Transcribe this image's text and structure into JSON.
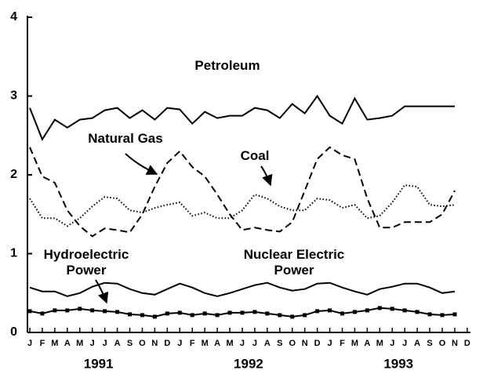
{
  "chart_data": {
    "type": "line",
    "categories": [
      "J",
      "F",
      "M",
      "A",
      "M",
      "J",
      "J",
      "A",
      "S",
      "O",
      "N",
      "D",
      "J",
      "F",
      "M",
      "A",
      "M",
      "J",
      "J",
      "A",
      "S",
      "O",
      "N",
      "D",
      "J",
      "F",
      "M",
      "A",
      "M",
      "J",
      "J",
      "A",
      "S",
      "O",
      "N",
      "D"
    ],
    "groups": [
      "1991",
      "1992",
      "1993"
    ],
    "ylim": [
      0,
      4
    ],
    "yticks": [
      0,
      1,
      2,
      3,
      4
    ],
    "series": [
      {
        "name": "Petroleum",
        "color": "#000000",
        "dash": "none",
        "values": [
          2.85,
          2.45,
          2.7,
          2.6,
          2.7,
          2.72,
          2.82,
          2.85,
          2.72,
          2.82,
          2.7,
          2.85,
          2.83,
          2.65,
          2.8,
          2.72,
          2.75,
          2.75,
          2.85,
          2.82,
          2.72,
          2.9,
          2.78,
          3.0,
          2.75,
          2.65,
          2.97,
          2.7,
          2.72,
          2.75,
          2.87,
          2.87,
          2.87,
          2.87,
          2.87,
          null
        ]
      },
      {
        "name": "Natural Gas",
        "color": "#000000",
        "dash": "9,5",
        "values": [
          2.35,
          1.98,
          1.9,
          1.55,
          1.35,
          1.22,
          1.32,
          1.3,
          1.27,
          1.5,
          1.85,
          2.15,
          2.3,
          2.1,
          1.98,
          1.75,
          1.5,
          1.3,
          1.33,
          1.3,
          1.28,
          1.4,
          1.8,
          2.2,
          2.35,
          2.25,
          2.2,
          1.7,
          1.33,
          1.33,
          1.4,
          1.4,
          1.4,
          1.5,
          1.8,
          null
        ]
      },
      {
        "name": "Coal",
        "color": "#000000",
        "dash": "1.5,2.5",
        "values": [
          1.7,
          1.45,
          1.45,
          1.35,
          1.45,
          1.6,
          1.72,
          1.7,
          1.55,
          1.52,
          1.58,
          1.62,
          1.65,
          1.48,
          1.52,
          1.45,
          1.45,
          1.55,
          1.75,
          1.7,
          1.6,
          1.55,
          1.55,
          1.7,
          1.68,
          1.58,
          1.62,
          1.45,
          1.48,
          1.65,
          1.87,
          1.85,
          1.62,
          1.6,
          1.62,
          null
        ]
      },
      {
        "name": "Nuclear Electric Power",
        "color": "#000000",
        "dash": "none",
        "values": [
          0.57,
          0.52,
          0.52,
          0.46,
          0.5,
          0.58,
          0.63,
          0.62,
          0.55,
          0.5,
          0.48,
          0.55,
          0.62,
          0.57,
          0.5,
          0.46,
          0.5,
          0.55,
          0.6,
          0.63,
          0.57,
          0.53,
          0.55,
          0.62,
          0.63,
          0.57,
          0.52,
          0.48,
          0.55,
          0.58,
          0.62,
          0.62,
          0.57,
          0.5,
          0.52,
          null
        ]
      },
      {
        "name": "Hydroelectric Power",
        "color": "#000000",
        "dash": "none",
        "marker": "square",
        "values": [
          0.27,
          0.24,
          0.28,
          0.28,
          0.3,
          0.28,
          0.27,
          0.26,
          0.23,
          0.22,
          0.2,
          0.24,
          0.25,
          0.22,
          0.24,
          0.22,
          0.25,
          0.25,
          0.26,
          0.24,
          0.22,
          0.2,
          0.22,
          0.27,
          0.28,
          0.24,
          0.26,
          0.28,
          0.31,
          0.3,
          0.28,
          0.26,
          0.23,
          0.22,
          0.23,
          null
        ]
      }
    ]
  }
}
